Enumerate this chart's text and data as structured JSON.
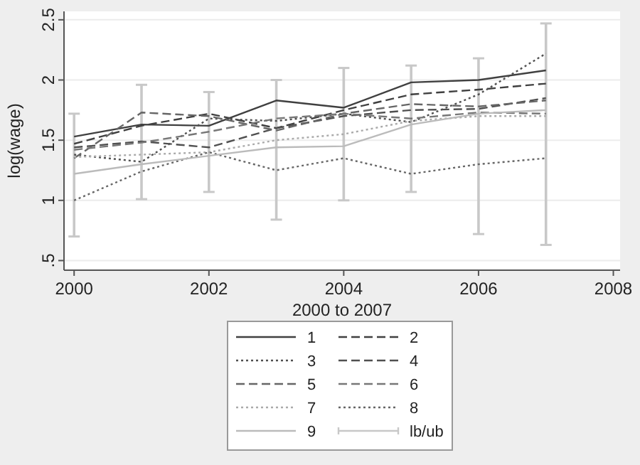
{
  "chart_data": {
    "type": "line",
    "xlabel": "2000 to 2007",
    "ylabel": "log(wage)",
    "x": [
      2000,
      2001,
      2002,
      2003,
      2004,
      2005,
      2006,
      2007
    ],
    "xlim": [
      1999.85,
      2008.1
    ],
    "xticks": [
      2000,
      2002,
      2004,
      2006,
      2008
    ],
    "ylim": [
      0.42,
      2.57
    ],
    "yticks": [
      {
        "value": 0.5,
        "label": ".5"
      },
      1,
      1.5,
      2,
      2.5
    ],
    "grid": "y",
    "legend": "bottom",
    "marker": "none",
    "series": [
      {
        "name": "1",
        "color": "#404040",
        "line_style": "solid",
        "values": [
          1.53,
          1.63,
          1.62,
          1.83,
          1.77,
          1.98,
          2.0,
          2.08
        ]
      },
      {
        "name": "2",
        "color": "#404040",
        "line_style": "dashed",
        "values": [
          1.47,
          1.62,
          1.72,
          1.6,
          1.75,
          1.88,
          1.92,
          1.97
        ]
      },
      {
        "name": "3",
        "color": "#505050",
        "line_style": "dotted",
        "values": [
          1.38,
          1.32,
          1.68,
          1.66,
          1.72,
          1.65,
          1.88,
          2.22
        ]
      },
      {
        "name": "4",
        "color": "#505050",
        "line_style": "dashed",
        "values": [
          1.44,
          1.49,
          1.44,
          1.6,
          1.7,
          1.75,
          1.76,
          1.85
        ]
      },
      {
        "name": "5",
        "color": "#666666",
        "line_style": "dashed",
        "values": [
          1.35,
          1.73,
          1.7,
          1.58,
          1.72,
          1.8,
          1.78,
          1.83
        ]
      },
      {
        "name": "6",
        "color": "#777777",
        "line_style": "dashed",
        "values": [
          1.42,
          1.48,
          1.57,
          1.68,
          1.72,
          1.68,
          1.73,
          1.72
        ]
      },
      {
        "name": "7",
        "color": "#aaaaaa",
        "line_style": "dotted",
        "values": [
          1.36,
          1.38,
          1.4,
          1.5,
          1.55,
          1.66,
          1.7,
          1.7
        ]
      },
      {
        "name": "8",
        "color": "#666666",
        "line_style": "dotted",
        "values": [
          1.0,
          1.24,
          1.4,
          1.25,
          1.35,
          1.22,
          1.3,
          1.35
        ]
      },
      {
        "name": "9",
        "color": "#bbbbbb",
        "line_style": "solid",
        "values": [
          1.22,
          1.3,
          1.37,
          1.44,
          1.45,
          1.63,
          1.72,
          1.75
        ]
      },
      {
        "name": "lb/ub",
        "type": "bar",
        "color": "#c8c8c8",
        "base": [
          0.7,
          1.01,
          1.07,
          0.84,
          1.0,
          1.07,
          0.72,
          0.63
        ],
        "values": [
          1.02,
          0.95,
          0.83,
          1.16,
          1.1,
          1.05,
          1.46,
          1.84
        ]
      }
    ]
  }
}
